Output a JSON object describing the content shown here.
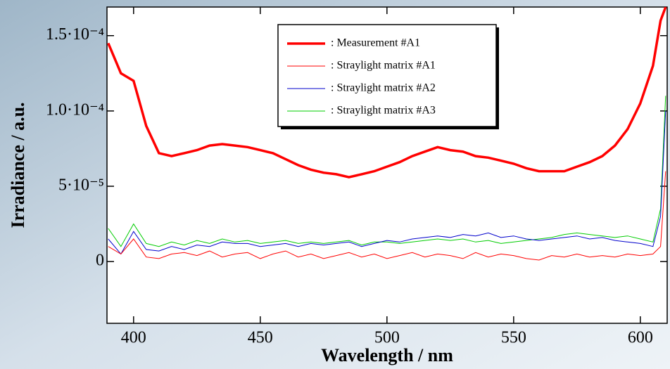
{
  "chart_data": {
    "type": "line",
    "x_label": "Wavelength / nm",
    "y_label": "Irradiance / a.u.",
    "x": [
      390,
      395,
      400,
      405,
      410,
      415,
      420,
      425,
      430,
      435,
      440,
      445,
      450,
      455,
      460,
      465,
      470,
      475,
      480,
      485,
      490,
      495,
      500,
      505,
      510,
      515,
      520,
      525,
      530,
      535,
      540,
      545,
      550,
      555,
      560,
      565,
      570,
      575,
      580,
      585,
      590,
      595,
      600,
      605,
      608,
      610
    ],
    "series": [
      {
        "name": ": Measurement #A1",
        "color": "#ff0000",
        "values": [
          0.000145,
          0.000125,
          0.00012,
          9e-05,
          7.2e-05,
          7e-05,
          7.2e-05,
          7.4e-05,
          7.7e-05,
          7.8e-05,
          7.7e-05,
          7.6e-05,
          7.4e-05,
          7.2e-05,
          6.8e-05,
          6.4e-05,
          6.1e-05,
          5.9e-05,
          5.8e-05,
          5.6e-05,
          5.8e-05,
          6e-05,
          6.3e-05,
          6.6e-05,
          7e-05,
          7.3e-05,
          7.6e-05,
          7.4e-05,
          7.3e-05,
          7e-05,
          6.9e-05,
          6.7e-05,
          6.5e-05,
          6.2e-05,
          6e-05,
          6e-05,
          6e-05,
          6.3e-05,
          6.6e-05,
          7e-05,
          7.7e-05,
          8.8e-05,
          0.000105,
          0.00013,
          0.00016,
          0.000169
        ]
      },
      {
        "name": ": Straylight matrix #A1",
        "color": "#ff0000",
        "values": [
          1e-05,
          5e-06,
          1.5e-05,
          3e-06,
          2e-06,
          5e-06,
          6e-06,
          4e-06,
          7e-06,
          3e-06,
          5e-06,
          6e-06,
          2e-06,
          5e-06,
          7e-06,
          3e-06,
          5e-06,
          2e-06,
          4e-06,
          6e-06,
          3e-06,
          5e-06,
          2e-06,
          4e-06,
          6e-06,
          3e-06,
          5e-06,
          4e-06,
          2e-06,
          6e-06,
          3e-06,
          5e-06,
          4e-06,
          2e-06,
          1e-06,
          4e-06,
          3e-06,
          5e-06,
          3e-06,
          4e-06,
          3e-06,
          5e-06,
          4e-06,
          5e-06,
          1e-05,
          6e-05
        ]
      },
      {
        "name": ": Straylight matrix #A2",
        "color": "#0000cc",
        "values": [
          1.5e-05,
          5e-06,
          2e-05,
          8e-06,
          7e-06,
          1e-05,
          8e-06,
          1.1e-05,
          1e-05,
          1.3e-05,
          1.2e-05,
          1.2e-05,
          1e-05,
          1.1e-05,
          1.2e-05,
          1e-05,
          1.2e-05,
          1.1e-05,
          1.2e-05,
          1.3e-05,
          1e-05,
          1.2e-05,
          1.4e-05,
          1.3e-05,
          1.5e-05,
          1.6e-05,
          1.7e-05,
          1.6e-05,
          1.8e-05,
          1.7e-05,
          1.9e-05,
          1.6e-05,
          1.7e-05,
          1.5e-05,
          1.4e-05,
          1.5e-05,
          1.6e-05,
          1.7e-05,
          1.5e-05,
          1.6e-05,
          1.4e-05,
          1.3e-05,
          1.2e-05,
          1e-05,
          3e-05,
          0.0001
        ]
      },
      {
        "name": ": Straylight matrix #A3",
        "color": "#00cc00",
        "values": [
          2.2e-05,
          1e-05,
          2.5e-05,
          1.2e-05,
          1e-05,
          1.3e-05,
          1.1e-05,
          1.4e-05,
          1.2e-05,
          1.5e-05,
          1.3e-05,
          1.4e-05,
          1.2e-05,
          1.3e-05,
          1.4e-05,
          1.2e-05,
          1.3e-05,
          1.2e-05,
          1.3e-05,
          1.4e-05,
          1.1e-05,
          1.3e-05,
          1.3e-05,
          1.2e-05,
          1.3e-05,
          1.4e-05,
          1.5e-05,
          1.4e-05,
          1.5e-05,
          1.3e-05,
          1.4e-05,
          1.2e-05,
          1.3e-05,
          1.4e-05,
          1.5e-05,
          1.6e-05,
          1.8e-05,
          1.9e-05,
          1.8e-05,
          1.7e-05,
          1.6e-05,
          1.7e-05,
          1.5e-05,
          1.3e-05,
          3.5e-05,
          0.00011
        ]
      }
    ],
    "xlim": [
      389.5,
      610.6
    ],
    "ylim": [
      -4.1e-05,
      0.000169
    ],
    "xticks": [
      400,
      450,
      500,
      550,
      600
    ],
    "yticks": [
      0,
      {
        "value": 5e-05,
        "label": "5·10⁻⁵"
      },
      {
        "value": 0.0001,
        "label": "1.0·10⁻⁴"
      },
      {
        "value": 0.00015,
        "label": "1.5·10⁻⁴"
      }
    ]
  }
}
